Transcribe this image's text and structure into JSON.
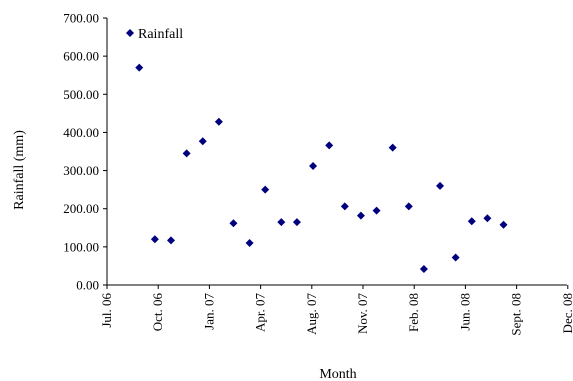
{
  "chart_data": {
    "type": "scatter",
    "xlabel": "Month",
    "ylabel": "Rainfall (mm)",
    "xlim": [
      "2006-07-01",
      "2008-12-01"
    ],
    "ylim": [
      0,
      700
    ],
    "x_ticks": [
      "Jul. 06",
      "Oct. 06",
      "Jan. 07",
      "Apr. 07",
      "Aug. 07",
      "Nov. 07",
      "Feb. 08",
      "Jun. 08",
      "Sept. 08",
      "Dec. 08"
    ],
    "y_ticks": [
      "0.00",
      "100.00",
      "200.00",
      "300.00",
      "400.00",
      "500.00",
      "600.00",
      "700.00"
    ],
    "grid": false,
    "legend": {
      "position": "top-left",
      "marker": "diamond"
    },
    "series": [
      {
        "name": "Rainfall",
        "color": "#00007f",
        "points": [
          {
            "x": "2006-09-01",
            "y": 570
          },
          {
            "x": "2006-10-01",
            "y": 120
          },
          {
            "x": "2006-11-01",
            "y": 117
          },
          {
            "x": "2006-12-01",
            "y": 345
          },
          {
            "x": "2007-01-01",
            "y": 377
          },
          {
            "x": "2007-02-01",
            "y": 428
          },
          {
            "x": "2007-03-01",
            "y": 162
          },
          {
            "x": "2007-04-01",
            "y": 110
          },
          {
            "x": "2007-05-01",
            "y": 250
          },
          {
            "x": "2007-06-01",
            "y": 165
          },
          {
            "x": "2007-07-01",
            "y": 165
          },
          {
            "x": "2007-08-01",
            "y": 312
          },
          {
            "x": "2007-09-01",
            "y": 366
          },
          {
            "x": "2007-10-01",
            "y": 206
          },
          {
            "x": "2007-11-01",
            "y": 182
          },
          {
            "x": "2007-12-01",
            "y": 195
          },
          {
            "x": "2008-01-01",
            "y": 360
          },
          {
            "x": "2008-02-01",
            "y": 206
          },
          {
            "x": "2008-03-01",
            "y": 42
          },
          {
            "x": "2008-04-01",
            "y": 260
          },
          {
            "x": "2008-05-01",
            "y": 72
          },
          {
            "x": "2008-06-01",
            "y": 167
          },
          {
            "x": "2008-07-01",
            "y": 175
          },
          {
            "x": "2008-08-01",
            "y": 158
          }
        ]
      }
    ]
  }
}
